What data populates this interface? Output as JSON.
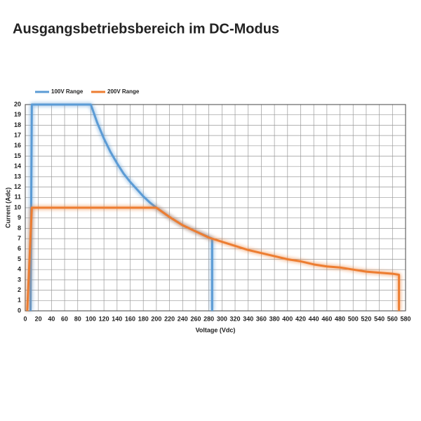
{
  "chart_data": {
    "type": "line",
    "title": "Ausgangsbetriebsbereich im DC-Modus",
    "x_label": "Voltage (Vdc)",
    "y_label": "Current (Adc)",
    "series": [
      {
        "name": "100V Range",
        "color": "#5b9bd5",
        "x": [
          8,
          10,
          100,
          110,
          120,
          130,
          140,
          150,
          160,
          170,
          180,
          190,
          200,
          220,
          240,
          260,
          285,
          285
        ],
        "values": [
          0,
          20,
          20,
          18.2,
          16.7,
          15.4,
          14.3,
          13.3,
          12.5,
          11.8,
          11.1,
          10.5,
          10,
          9.1,
          8.3,
          7.7,
          7,
          0
        ]
      },
      {
        "name": "200V Range",
        "color": "#ed7d31",
        "x": [
          3,
          10,
          200,
          220,
          240,
          260,
          280,
          300,
          320,
          340,
          360,
          380,
          400,
          420,
          440,
          460,
          480,
          500,
          520,
          540,
          560,
          570,
          570
        ],
        "values": [
          0,
          10,
          10,
          9.1,
          8.3,
          7.7,
          7.1,
          6.7,
          6.3,
          5.9,
          5.6,
          5.3,
          5,
          4.8,
          4.5,
          4.3,
          4.2,
          4,
          3.8,
          3.7,
          3.6,
          3.5,
          0
        ]
      }
    ],
    "xlim": [
      0,
      580
    ],
    "xticks": [
      0,
      20,
      40,
      60,
      80,
      100,
      120,
      140,
      160,
      180,
      200,
      220,
      240,
      260,
      280,
      300,
      320,
      340,
      360,
      380,
      400,
      420,
      440,
      460,
      480,
      500,
      520,
      540,
      560,
      580
    ],
    "ylim": [
      0,
      20
    ],
    "yticks": [
      0,
      1,
      2,
      3,
      4,
      5,
      6,
      7,
      8,
      9,
      10,
      11,
      12,
      13,
      14,
      15,
      16,
      17,
      18,
      19,
      20
    ],
    "grid": true
  }
}
